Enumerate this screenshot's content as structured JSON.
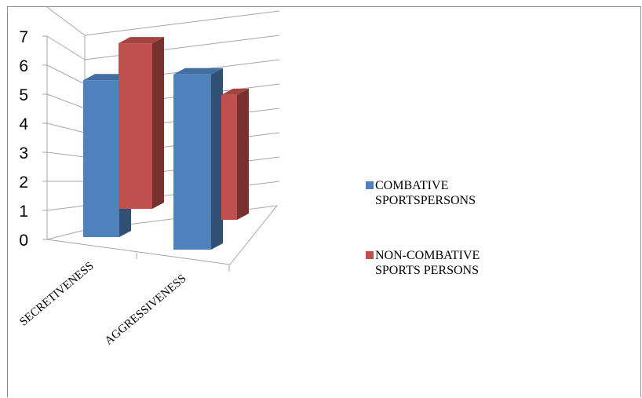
{
  "chart_data": {
    "type": "bar",
    "categories": [
      "SECRETIVENESS",
      "AGGRESSIVENESS"
    ],
    "series": [
      {
        "name": "COMBATIVE SPORTSPERSONS",
        "legend_lines": [
          "COMBATIVE",
          "SPORTSPERSONS"
        ],
        "values": [
          5.4,
          6.2
        ],
        "color": "#4f81bd"
      },
      {
        "name": "NON-COMBATIVE SPORTS PERSONS",
        "legend_lines": [
          "NON-COMBATIVE",
          "SPORTS PERSONS"
        ],
        "values": [
          5.7,
          4.3
        ],
        "color": "#c0504d"
      }
    ],
    "yticks": [
      "0",
      "1",
      "2",
      "3",
      "4",
      "5",
      "6",
      "7"
    ],
    "ylim": [
      0,
      7
    ],
    "grid": true,
    "legend_position": "right"
  }
}
